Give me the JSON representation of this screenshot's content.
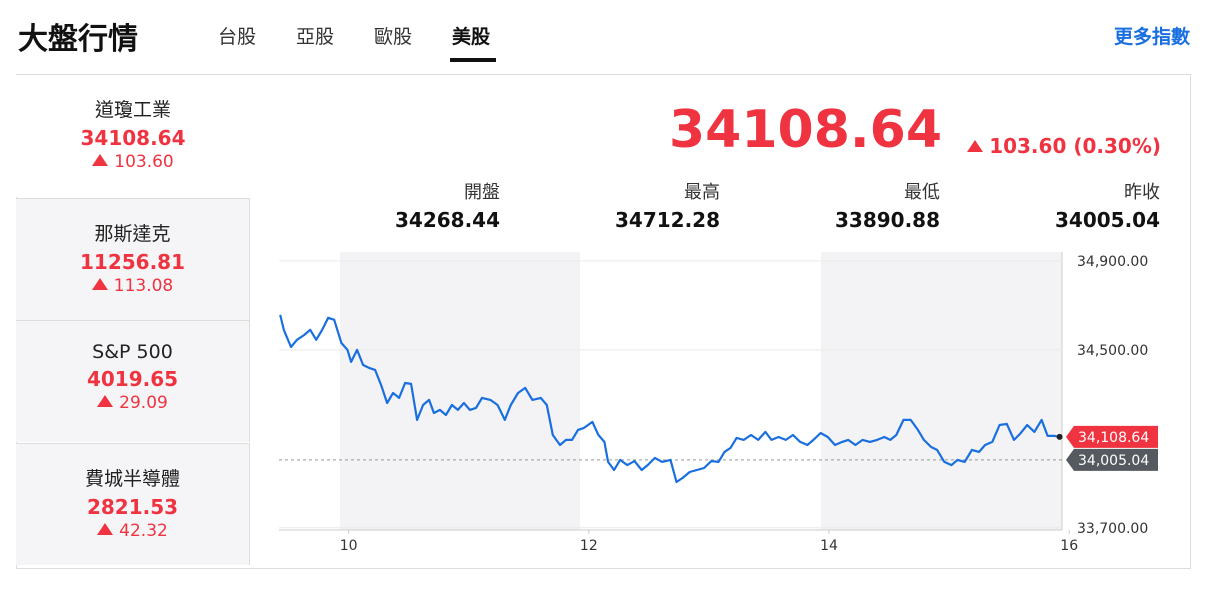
{
  "header": {
    "title": "大盤行情",
    "tabs": [
      "台股",
      "亞股",
      "歐股",
      "美股"
    ],
    "active_tab": 3,
    "more_link": "更多指數"
  },
  "sidebar": {
    "active_index": 0,
    "items": [
      {
        "name": "道瓊工業",
        "value": "34108.64",
        "change": "103.60"
      },
      {
        "name": "那斯達克",
        "value": "11256.81",
        "change": "113.08"
      },
      {
        "name": "S&P 500",
        "value": "4019.65",
        "change": "29.09"
      },
      {
        "name": "費城半導體",
        "value": "2821.53",
        "change": "42.32"
      }
    ]
  },
  "quote": {
    "price": "34108.64",
    "change": "103.60 (0.30%)",
    "stats": [
      {
        "label": "開盤",
        "value": "34268.44"
      },
      {
        "label": "最高",
        "value": "34712.28"
      },
      {
        "label": "最低",
        "value": "33890.88"
      },
      {
        "label": "昨收",
        "value": "34005.04"
      }
    ]
  },
  "chart_data": {
    "type": "line",
    "color": "#1a6fe0",
    "grid": true,
    "x": [
      9.43,
      9.46,
      9.52,
      9.57,
      9.63,
      9.68,
      9.73,
      9.78,
      9.83,
      9.88,
      9.94,
      9.99,
      10.02,
      10.07,
      10.12,
      10.17,
      10.22,
      10.27,
      10.32,
      10.37,
      10.42,
      10.47,
      10.52,
      10.57,
      10.62,
      10.67,
      10.71,
      10.76,
      10.81,
      10.86,
      10.91,
      10.96,
      11.01,
      11.06,
      11.11,
      11.18,
      11.24,
      11.3,
      11.35,
      11.41,
      11.47,
      11.53,
      11.6,
      11.65,
      11.7,
      11.76,
      11.81,
      11.86,
      11.91,
      11.96,
      12.03,
      12.08,
      12.13,
      12.16,
      12.21,
      12.26,
      12.32,
      12.38,
      12.44,
      12.49,
      12.55,
      12.61,
      12.68,
      12.73,
      12.78,
      12.84,
      12.9,
      12.96,
      13.02,
      13.08,
      13.13,
      13.18,
      13.23,
      13.29,
      13.35,
      13.41,
      13.47,
      13.52,
      13.58,
      13.64,
      13.7,
      13.76,
      13.82,
      13.87,
      13.93,
      13.99,
      14.05,
      14.11,
      14.16,
      14.22,
      14.28,
      14.34,
      14.4,
      14.46,
      14.51,
      14.56,
      14.62,
      14.68,
      14.74,
      14.79,
      14.85,
      14.9,
      14.96,
      15.02,
      15.07,
      15.13,
      15.19,
      15.25,
      15.3,
      15.36,
      15.42,
      15.48,
      15.54,
      15.59,
      15.65,
      15.71,
      15.77,
      15.82,
      15.88,
      15.92
    ],
    "values": [
      34657,
      34590,
      34513,
      34545,
      34567,
      34590,
      34545,
      34590,
      34644,
      34635,
      34531,
      34500,
      34446,
      34500,
      34432,
      34419,
      34410,
      34342,
      34261,
      34306,
      34284,
      34351,
      34347,
      34185,
      34252,
      34275,
      34216,
      34230,
      34207,
      34252,
      34230,
      34261,
      34230,
      34239,
      34284,
      34275,
      34252,
      34185,
      34252,
      34306,
      34329,
      34275,
      34284,
      34252,
      34117,
      34072,
      34095,
      34095,
      34140,
      34149,
      34176,
      34117,
      34086,
      33996,
      33960,
      34005,
      33982,
      34000,
      33960,
      33982,
      34014,
      33996,
      34005,
      33906,
      33924,
      33951,
      33960,
      33969,
      34000,
      33996,
      34041,
      34059,
      34104,
      34095,
      34117,
      34095,
      34131,
      34095,
      34108,
      34095,
      34117,
      34086,
      34072,
      34095,
      34126,
      34108,
      34072,
      34086,
      34095,
      34072,
      34095,
      34086,
      34095,
      34108,
      34095,
      34117,
      34185,
      34185,
      34140,
      34095,
      34063,
      34050,
      33996,
      33982,
      34005,
      33996,
      34050,
      34041,
      34072,
      34086,
      34162,
      34167,
      34095,
      34122,
      34162,
      34131,
      34185,
      34113,
      34113,
      34108.64
    ],
    "xlim": [
      9.42,
      15.94
    ],
    "ylim": [
      33690,
      34940
    ],
    "xticks": [
      10,
      12,
      14,
      16
    ],
    "yticks": [
      {
        "value": 34900,
        "label": "34,900.00"
      },
      {
        "value": 34500,
        "label": "34,500.00"
      },
      {
        "value": 33700,
        "label": "33,700.00"
      }
    ],
    "last_price": {
      "value": 34108.64,
      "label": "34,108.64",
      "color": "#ef3340"
    },
    "prev_close": {
      "value": 34005.04,
      "label": "34,005.04",
      "color": "#555a60"
    }
  }
}
